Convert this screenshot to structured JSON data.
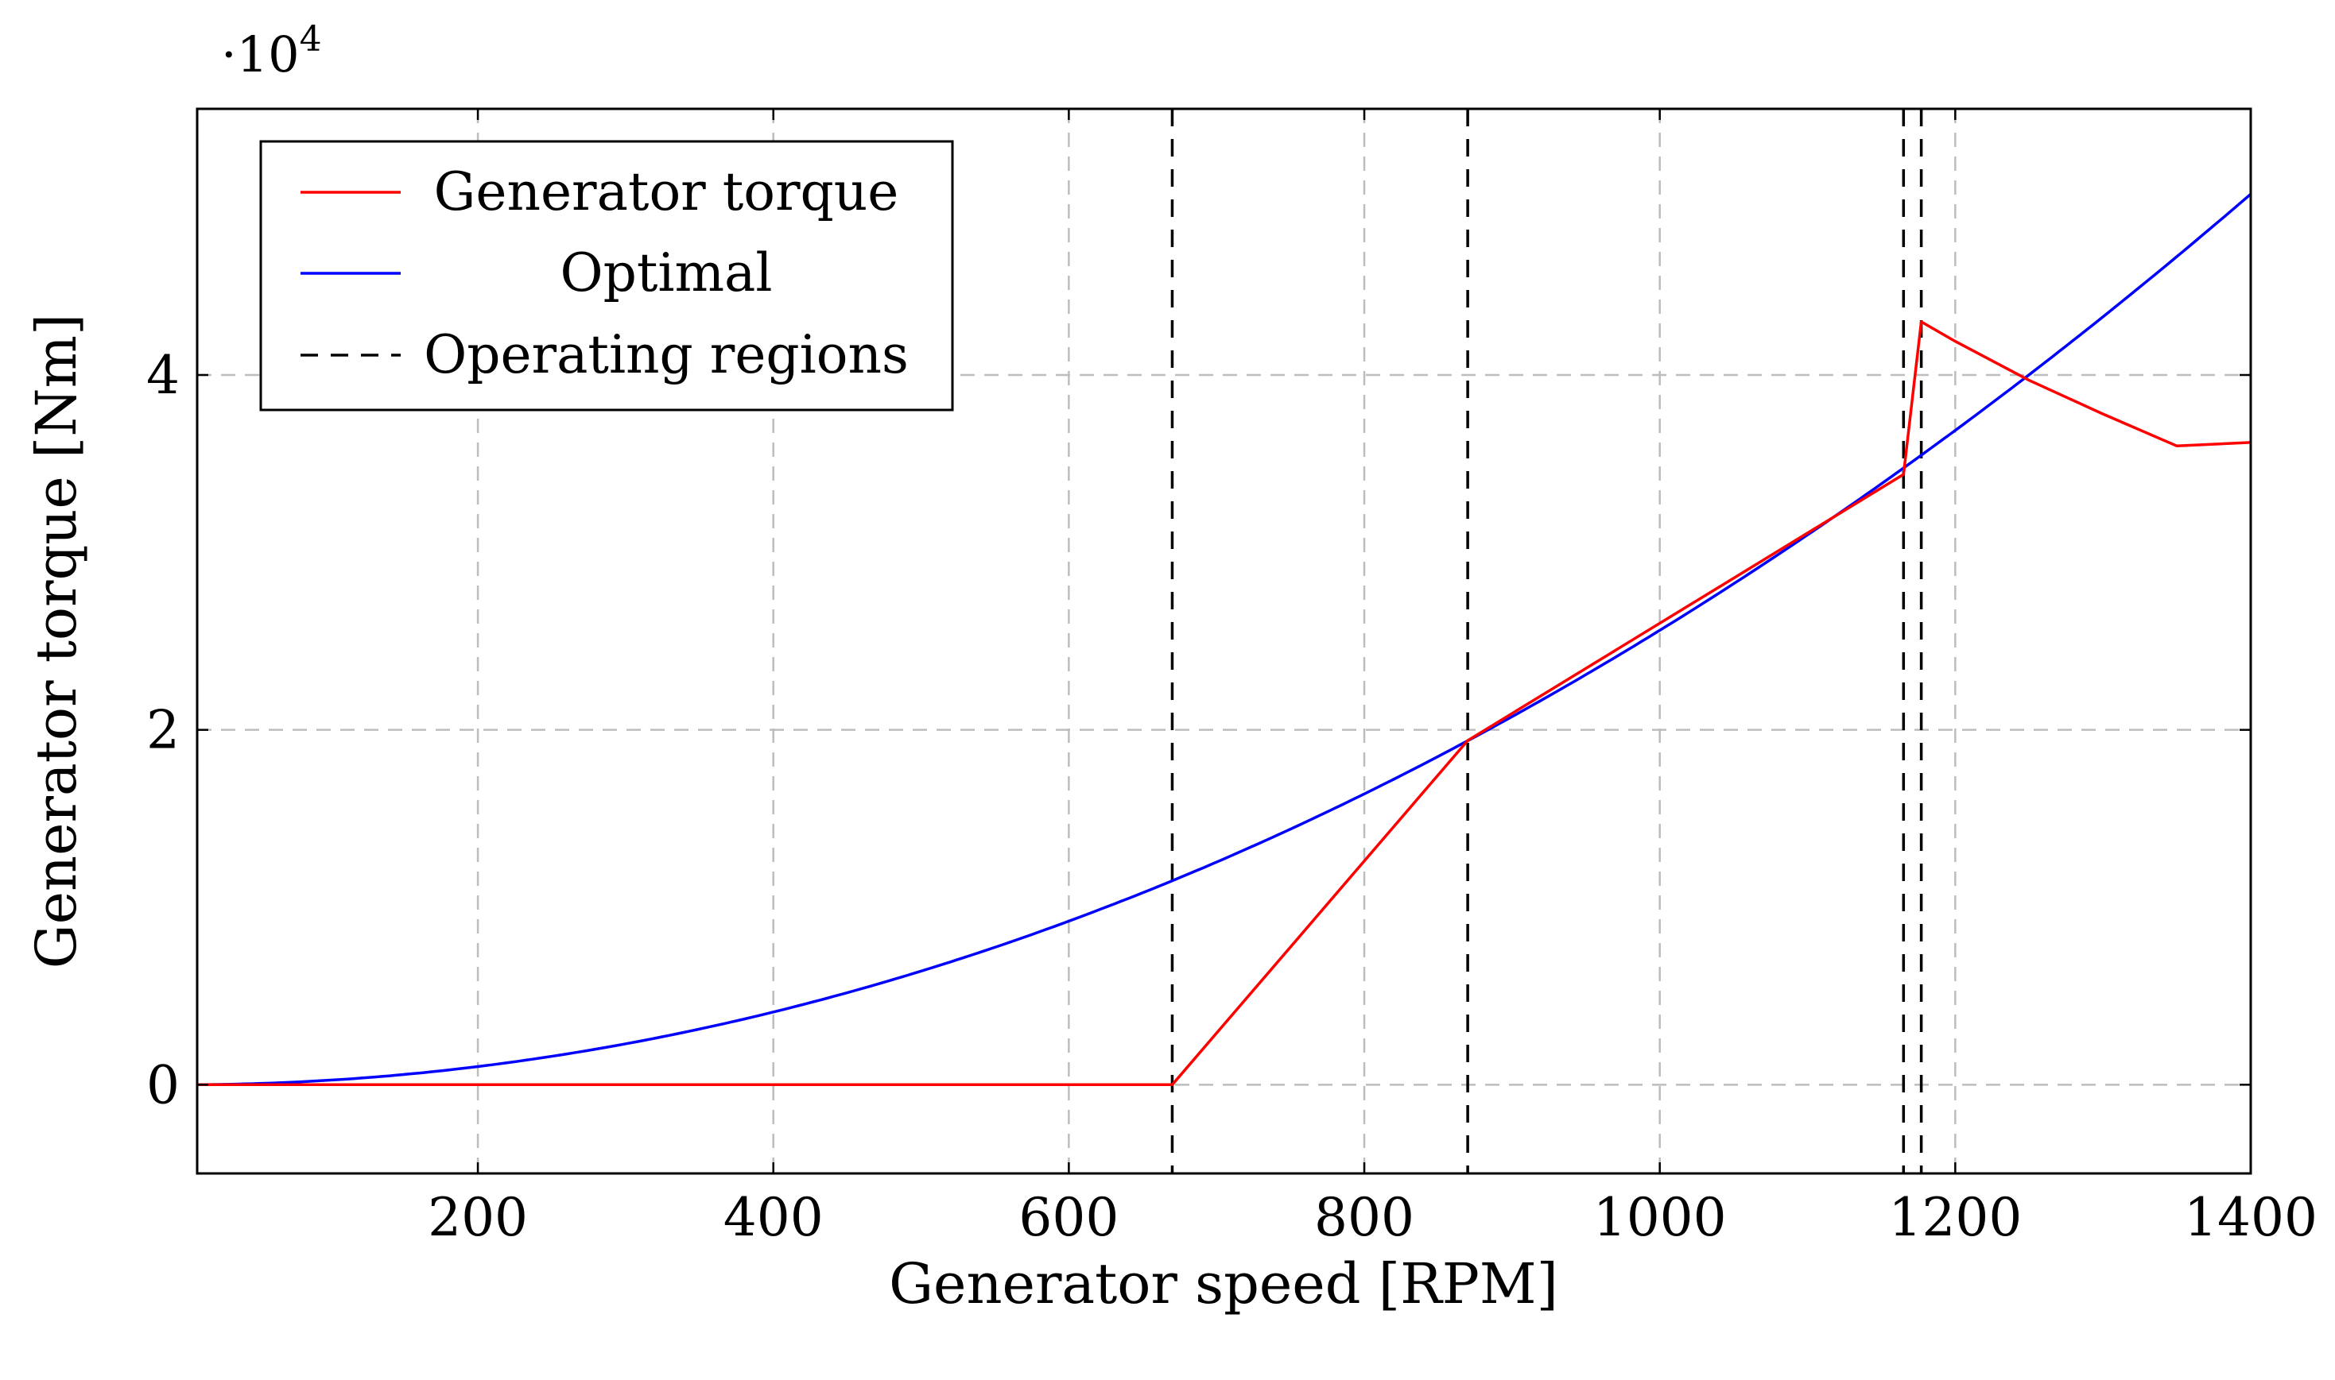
{
  "chart_data": {
    "type": "line",
    "title": "",
    "xlabel": "Generator speed [RPM]",
    "ylabel": "Generator torque [Nm]",
    "xlim": [
      10,
      1400
    ],
    "ylim": [
      -0.5,
      5.5
    ],
    "xticks": [
      200,
      400,
      600,
      800,
      1000,
      1200,
      1400
    ],
    "yticks": [
      0,
      2,
      4
    ],
    "y_scale_base": "10",
    "y_scale_exponent": "4",
    "y_scale_prefix": "·",
    "grid": true,
    "legend_position": "top-left",
    "series": [
      {
        "name": "Generator torque",
        "color": "#ff0000",
        "x": [
          10,
          670,
          870,
          1165,
          1177,
          1200,
          1250,
          1300,
          1350,
          1400
        ],
        "y": [
          0,
          0,
          1.94,
          3.44,
          4.3,
          4.19,
          3.97,
          3.78,
          3.6,
          3.62
        ]
      },
      {
        "name": "Optimal",
        "color": "#0000ff",
        "formula": "y = k * x^2",
        "k": 2.561e-06,
        "x_start": 10,
        "x_end": 1400
      },
      {
        "name": "Operating regions",
        "color": "#000000",
        "dashed": true,
        "x_lines": [
          670,
          870,
          1165,
          1177
        ]
      }
    ],
    "legend_entries": [
      "Generator torque",
      "Optimal",
      "Operating regions"
    ]
  }
}
